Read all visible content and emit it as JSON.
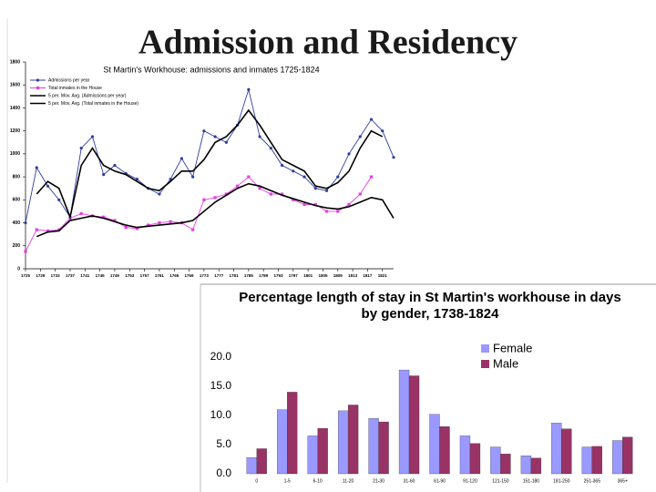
{
  "title": "Admission and Residency",
  "chart_data": [
    {
      "type": "line",
      "title": "St Martin's Workhouse: admissions and inmates 1725-1824",
      "x": [
        1725,
        1728,
        1731,
        1734,
        1737,
        1740,
        1743,
        1746,
        1749,
        1752,
        1755,
        1758,
        1761,
        1764,
        1767,
        1770,
        1773,
        1776,
        1779,
        1782,
        1785,
        1788,
        1791,
        1794,
        1797,
        1800,
        1803,
        1806,
        1809,
        1812,
        1815,
        1818,
        1821,
        1824
      ],
      "xlim": [
        1725,
        1824
      ],
      "xticks": [
        1725,
        1729,
        1733,
        1737,
        1741,
        1745,
        1749,
        1753,
        1757,
        1761,
        1765,
        1769,
        1773,
        1777,
        1781,
        1785,
        1789,
        1793,
        1797,
        1801,
        1805,
        1809,
        1813,
        1817,
        1821
      ],
      "ylim": [
        0,
        1800
      ],
      "yticks": [
        0,
        200,
        400,
        600,
        800,
        1000,
        1200,
        1400,
        1600,
        1800
      ],
      "legend": "top-left",
      "series": [
        {
          "name": "Admissions per year",
          "color": "#2e3f9e",
          "marker": "circle",
          "values": [
            400,
            880,
            720,
            600,
            450,
            1050,
            1150,
            820,
            900,
            830,
            780,
            700,
            650,
            780,
            960,
            800,
            1200,
            1150,
            1100,
            1250,
            1560,
            1150,
            1050,
            900,
            850,
            800,
            700,
            680,
            800,
            1000,
            1150,
            1300,
            1200,
            970
          ]
        },
        {
          "name": "Total inmates in the House",
          "color": "#e040e0",
          "marker": "square",
          "values": [
            150,
            340,
            330,
            340,
            440,
            480,
            460,
            450,
            420,
            360,
            350,
            380,
            400,
            410,
            400,
            340,
            600,
            620,
            650,
            720,
            800,
            700,
            650,
            650,
            600,
            560,
            560,
            500,
            500,
            560,
            650,
            800,
            null,
            null
          ]
        },
        {
          "name": "5 per. Mov. Avg. (Admissions per year)",
          "color": "#000000",
          "marker": "none",
          "values": [
            null,
            650,
            760,
            700,
            450,
            900,
            1050,
            900,
            850,
            820,
            760,
            700,
            680,
            760,
            850,
            850,
            950,
            1100,
            1150,
            1250,
            1380,
            1250,
            1100,
            950,
            900,
            850,
            720,
            700,
            750,
            850,
            1050,
            1200,
            1150,
            null
          ]
        },
        {
          "name": "5 per. Mov. Avg. (Total inmates in the House)",
          "color": "#000000",
          "marker": "none",
          "values": [
            null,
            280,
            320,
            330,
            420,
            440,
            460,
            440,
            410,
            380,
            360,
            370,
            380,
            390,
            400,
            420,
            500,
            580,
            640,
            700,
            740,
            720,
            680,
            640,
            610,
            580,
            550,
            530,
            520,
            540,
            580,
            620,
            600,
            440
          ]
        }
      ]
    },
    {
      "type": "bar",
      "title": "Percentage length of stay in St Martin's workhouse in days by gender, 1738-1824",
      "categories": [
        "0",
        "1-5",
        "6-10",
        "11-20",
        "21-30",
        "31-60",
        "61-90",
        "91-120",
        "121-150",
        "151-180",
        "181-250",
        "251-365",
        "365+"
      ],
      "ylim": [
        0,
        20
      ],
      "yticks": [
        {
          "value": 0,
          "label": "0.0"
        },
        {
          "value": 5,
          "label": "5.0"
        },
        {
          "value": 10,
          "label": "10.0"
        },
        {
          "value": 15,
          "label": "15.0"
        },
        {
          "value": 20,
          "label": "20.0"
        }
      ],
      "legend": "top-right",
      "series": [
        {
          "name": "Female",
          "color": "#9999ff",
          "values": [
            2.8,
            11.0,
            6.5,
            10.8,
            9.5,
            17.8,
            10.2,
            6.5,
            4.6,
            3.1,
            8.7,
            4.6,
            5.7
          ]
        },
        {
          "name": "Male",
          "color": "#993366",
          "values": [
            4.3,
            14.0,
            7.8,
            11.8,
            8.9,
            16.8,
            8.1,
            5.2,
            3.4,
            2.7,
            7.7,
            4.7,
            6.3
          ]
        }
      ]
    }
  ]
}
